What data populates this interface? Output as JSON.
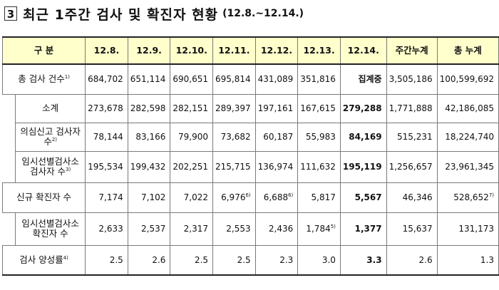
{
  "heading": {
    "number": "3",
    "title": "최근 1주간 검사 및 확진자 현황",
    "period": "(12.8.~12.14.)"
  },
  "table": {
    "header": {
      "label": "구  분",
      "dates": [
        "12.8.",
        "12.9.",
        "12.10.",
        "12.11.",
        "12.12.",
        "12.13.",
        "12.14."
      ],
      "weekly_total": "주간누계",
      "grand_total": "총 누계"
    },
    "rows": [
      {
        "label": "총 검사 건수",
        "note": "1)",
        "values": [
          "684,702",
          "651,114",
          "690,651",
          "695,814",
          "431,089",
          "351,816",
          "집계중",
          "3,505,186",
          "100,599,692"
        ]
      },
      {
        "label": "소계",
        "note": "",
        "values": [
          "273,678",
          "282,598",
          "282,151",
          "289,397",
          "197,161",
          "167,615",
          "279,288",
          "1,771,888",
          "42,186,085"
        ]
      },
      {
        "label": "의심신고 검사자 수",
        "note": "2)",
        "values": [
          "78,144",
          "83,166",
          "79,900",
          "73,682",
          "60,187",
          "55,983",
          "84,169",
          "515,231",
          "18,224,740"
        ]
      },
      {
        "label_line1": "임시선별검사소",
        "label_line2": "검사자 수",
        "note": "3)",
        "values": [
          "195,534",
          "199,432",
          "202,251",
          "215,715",
          "136,974",
          "111,632",
          "195,119",
          "1,256,657",
          "23,961,345"
        ]
      },
      {
        "label": "신규 확진자 수",
        "note": "",
        "values": [
          "7,174",
          "7,102",
          "7,022",
          "6,976",
          "6,688",
          "5,817",
          "5,567",
          "46,346",
          "528,652"
        ],
        "notes": [
          "",
          "",
          "",
          "6)",
          "6)",
          "",
          "",
          "",
          "7)"
        ]
      },
      {
        "label_line1": "임시선별검사소",
        "label_line2": "확진자 수",
        "note": "",
        "values": [
          "2,633",
          "2,537",
          "2,317",
          "2,553",
          "2,436",
          "1,784",
          "1,377",
          "15,637",
          "131,173"
        ],
        "notes": [
          "",
          "",
          "",
          "",
          "",
          "5)",
          "",
          "",
          ""
        ]
      },
      {
        "label": "검사 양성률",
        "note": "4)",
        "values": [
          "2.5",
          "2.6",
          "2.5",
          "2.5",
          "2.3",
          "3.0",
          "3.3",
          "2.6",
          "1.3"
        ]
      }
    ]
  }
}
